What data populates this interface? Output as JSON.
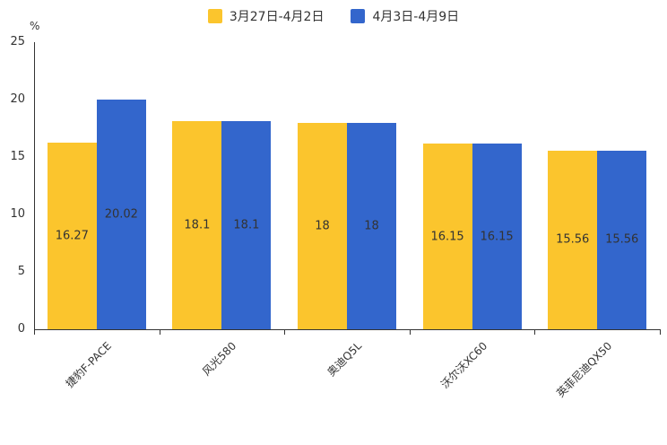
{
  "chart_data": {
    "type": "bar",
    "title": "",
    "categories": [
      "捷豹F-PACE",
      "风光580",
      "奥迪Q5L",
      "沃尔沃XC60",
      "英菲尼迪QX50"
    ],
    "series": [
      {
        "name": "3月27日-4月2日",
        "color": "#FBC52D",
        "values": [
          16.27,
          18.1,
          18,
          16.15,
          15.56
        ]
      },
      {
        "name": "4月3日-4月9日",
        "color": "#3366CC",
        "values": [
          20.02,
          18.1,
          18,
          16.15,
          15.56
        ]
      }
    ],
    "xlabel": "",
    "ylabel": "%",
    "ylim": [
      0,
      25
    ],
    "yticks": [
      0,
      5,
      10,
      15,
      20,
      25
    ],
    "grid": false,
    "legend_position": "top",
    "data_labels": "inside-center"
  }
}
